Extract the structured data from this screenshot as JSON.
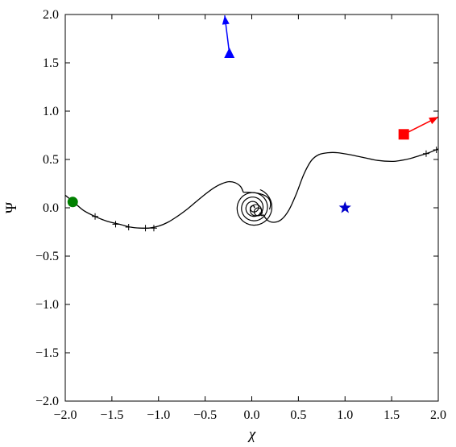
{
  "chart_data": {
    "type": "line",
    "xlabel": "χ",
    "ylabel": "Ψ",
    "xlim": [
      -2.0,
      2.0
    ],
    "ylim": [
      -2.0,
      2.0
    ],
    "xticks": [
      "−2.0",
      "−1.5",
      "−1.0",
      "−0.5",
      "0.0",
      "0.5",
      "1.0",
      "1.5",
      "2.0"
    ],
    "yticks": [
      "−2.0",
      "−1.5",
      "−1.0",
      "−0.5",
      "0.0",
      "0.5",
      "1.0",
      "1.5",
      "2.0"
    ],
    "grid": false,
    "curve": {
      "color": "#000000",
      "left_branch": [
        [
          -2.0,
          0.13
        ],
        [
          -1.9,
          0.05
        ],
        [
          -1.8,
          -0.03
        ],
        [
          -1.68,
          -0.09
        ],
        [
          -1.55,
          -0.14
        ],
        [
          -1.42,
          -0.17
        ],
        [
          -1.3,
          -0.2
        ],
        [
          -1.2,
          -0.21
        ],
        [
          -1.1,
          -0.21
        ],
        [
          -1.0,
          -0.19
        ],
        [
          -0.9,
          -0.15
        ],
        [
          -0.8,
          -0.09
        ],
        [
          -0.7,
          -0.02
        ],
        [
          -0.6,
          0.06
        ],
        [
          -0.5,
          0.14
        ],
        [
          -0.4,
          0.21
        ],
        [
          -0.32,
          0.25
        ],
        [
          -0.25,
          0.27
        ],
        [
          -0.18,
          0.26
        ],
        [
          -0.12,
          0.22
        ],
        [
          -0.09,
          0.16
        ]
      ],
      "right_branch": [
        [
          0.12,
          -0.07
        ],
        [
          0.17,
          -0.13
        ],
        [
          0.24,
          -0.15
        ],
        [
          0.32,
          -0.12
        ],
        [
          0.4,
          -0.02
        ],
        [
          0.48,
          0.15
        ],
        [
          0.56,
          0.35
        ],
        [
          0.64,
          0.49
        ],
        [
          0.72,
          0.55
        ],
        [
          0.82,
          0.57
        ],
        [
          0.92,
          0.57
        ],
        [
          1.05,
          0.55
        ],
        [
          1.2,
          0.52
        ],
        [
          1.35,
          0.49
        ],
        [
          1.5,
          0.48
        ],
        [
          1.6,
          0.49
        ],
        [
          1.7,
          0.51
        ],
        [
          1.8,
          0.54
        ],
        [
          1.9,
          0.57
        ],
        [
          2.0,
          0.61
        ]
      ],
      "crosses": [
        [
          -1.68,
          -0.09
        ],
        [
          -1.46,
          -0.17
        ],
        [
          -1.32,
          -0.2
        ],
        [
          -1.14,
          -0.21
        ],
        [
          -1.05,
          -0.21
        ],
        [
          1.87,
          0.56
        ],
        [
          1.98,
          0.6
        ]
      ],
      "spiral_center": [
        0.0,
        0.0
      ]
    },
    "markers": [
      {
        "shape": "circle",
        "color": "#008000",
        "x": -1.92,
        "y": 0.06
      },
      {
        "shape": "star",
        "color": "#0000cc",
        "x": 1.0,
        "y": 0.0
      },
      {
        "shape": "triangle",
        "color": "#0000ff",
        "x": -0.24,
        "y": 1.6
      },
      {
        "shape": "square",
        "color": "#ff0000",
        "x": 1.63,
        "y": 0.76
      }
    ],
    "arrows": [
      {
        "color": "#0000ff",
        "from": [
          -0.24,
          1.6
        ],
        "to": [
          -0.29,
          1.99
        ]
      },
      {
        "color": "#ff0000",
        "from": [
          1.63,
          0.76
        ],
        "to": [
          2.0,
          0.94
        ]
      }
    ]
  }
}
